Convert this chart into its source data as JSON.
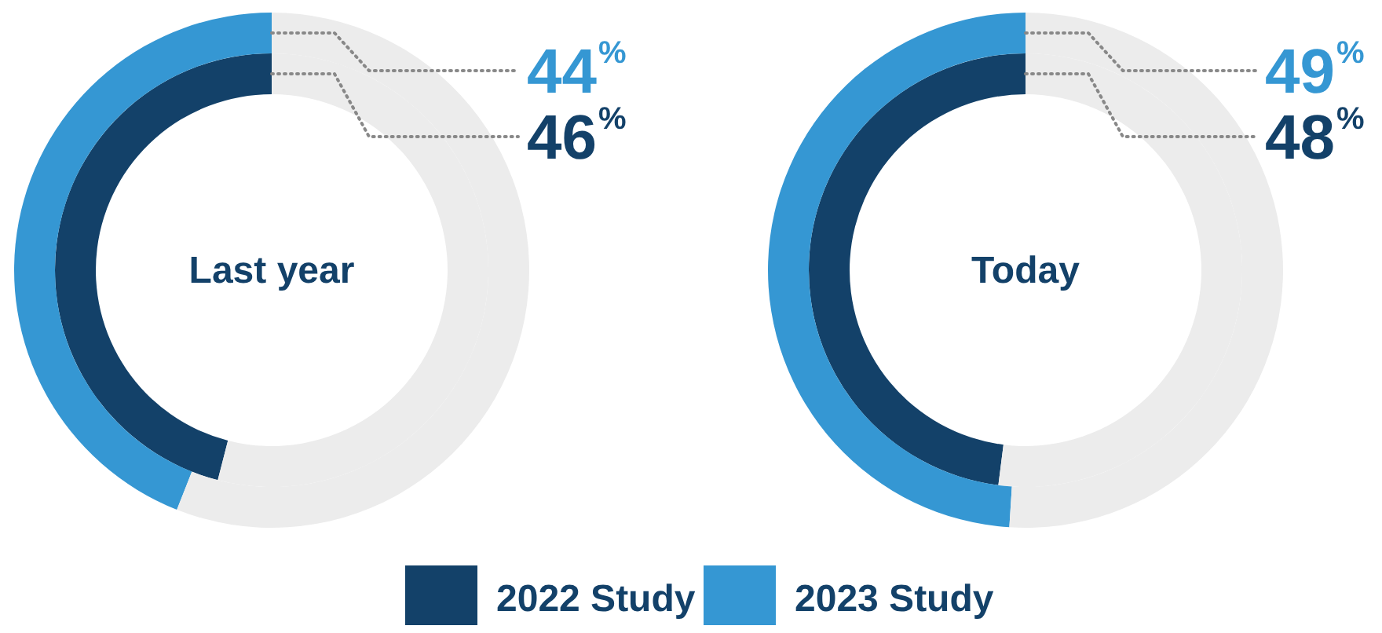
{
  "chart_data": [
    {
      "type": "donut",
      "title": "Last year",
      "categories": [
        null,
        null
      ],
      "legend": "bottom",
      "series": [
        {
          "name": "2022 Study",
          "colors": [
            "#134169",
            "#ececec"
          ],
          "values": [
            46,
            54
          ],
          "value_labels": [
            "46%",
            null
          ]
        },
        {
          "name": "2023 Study",
          "colors": [
            "#3597d3",
            "#ececec"
          ],
          "values": [
            44,
            56
          ],
          "value_labels": [
            "44%",
            null
          ]
        }
      ]
    },
    {
      "type": "donut",
      "title": "Today",
      "categories": [
        null,
        null
      ],
      "series": [
        {
          "name": "2022 Study",
          "colors": [
            "#134169",
            "#ececec"
          ],
          "values": [
            48,
            52
          ],
          "value_labels": [
            "48%",
            null
          ]
        },
        {
          "name": "2023 Study",
          "colors": [
            "#3597d3",
            "#ececec"
          ],
          "values": [
            49,
            51
          ],
          "value_labels": [
            "49%",
            null
          ]
        }
      ]
    }
  ]
}
